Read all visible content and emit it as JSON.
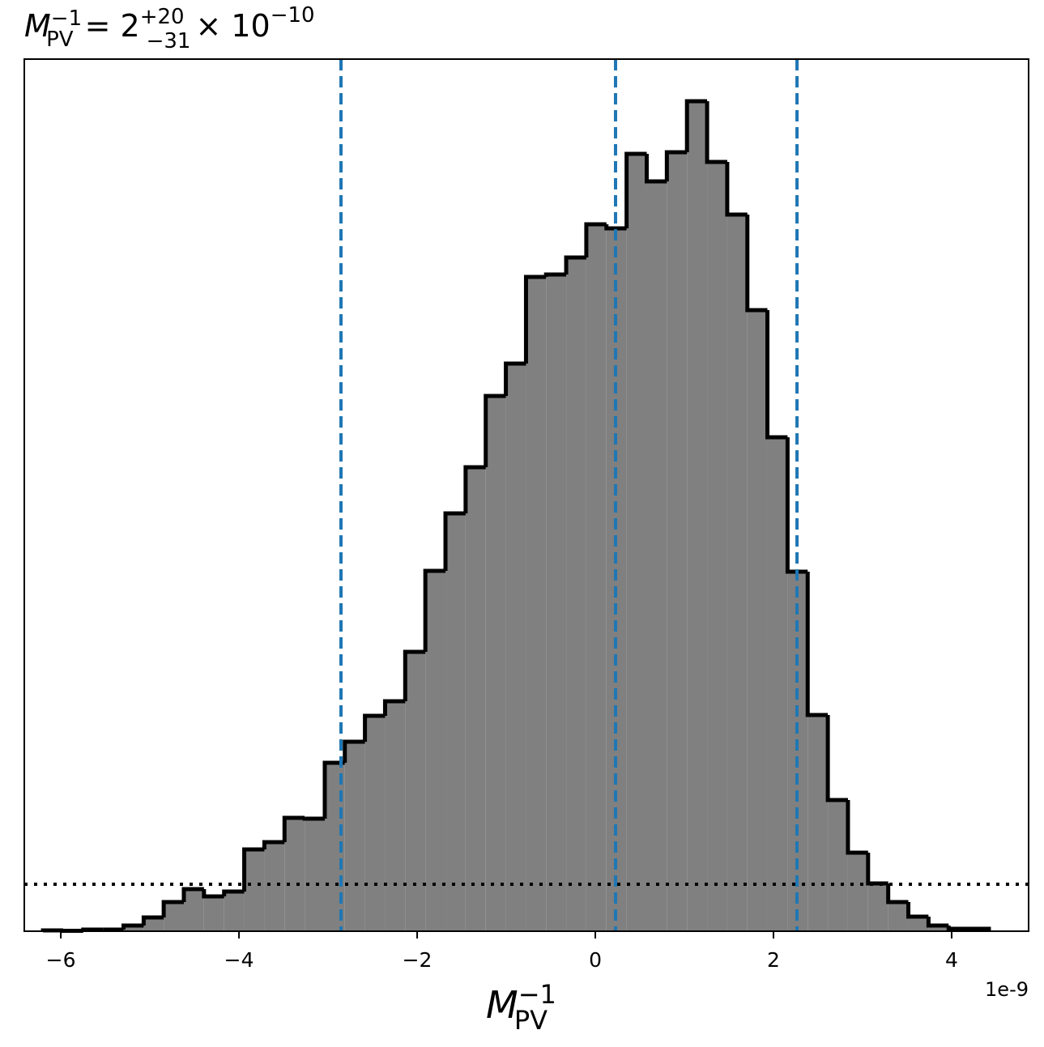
{
  "chart_data": {
    "type": "histogram",
    "title": {
      "symbol": "M",
      "sup": "−1",
      "sub": "PV",
      "equals": "= 2",
      "upper": "+20",
      "lower": "−31",
      "times": "× 10",
      "exponent": "−10"
    },
    "x_label": {
      "symbol": "M",
      "sup": "−1",
      "sub": "PV"
    },
    "x_offset_label": "1e-9",
    "bins": [
      -6.2,
      -5.974,
      -5.748,
      -5.522,
      -5.296,
      -5.07,
      -4.845,
      -4.619,
      -4.393,
      -4.167,
      -3.941,
      -3.715,
      -3.489,
      -3.263,
      -3.037,
      -2.812,
      -2.586,
      -2.36,
      -2.134,
      -1.908,
      -1.682,
      -1.456,
      -1.23,
      -1.004,
      -0.778,
      -0.553,
      -0.327,
      -0.101,
      0.125,
      0.351,
      0.577,
      0.803,
      1.029,
      1.255,
      1.481,
      1.707,
      1.932,
      2.158,
      2.384,
      2.61,
      2.836,
      3.062,
      3.288,
      3.514,
      3.74,
      3.966,
      4.191,
      4.418
    ],
    "values": [
      1,
      0.5,
      2,
      2,
      7,
      17,
      36,
      52,
      43,
      49,
      101,
      110,
      140,
      139,
      208,
      234,
      266,
      284,
      345,
      445,
      516,
      573,
      661,
      701,
      808,
      811,
      832,
      873,
      868,
      960,
      926,
      962,
      1025,
      950,
      885,
      767,
      610,
      444,
      267,
      162,
      97,
      59,
      36,
      18,
      7,
      3,
      3
    ],
    "color": "#808080",
    "edge_color": "#000000",
    "vlines": [
      -2.855,
      0.227,
      2.264
    ],
    "vline_color": "#1f77b4",
    "hline": 58,
    "hline_color": "#000000",
    "xlim": [
      -6.41,
      4.864
    ],
    "ylim": [
      0,
      1077
    ],
    "xticks": [
      {
        "value": -6,
        "label": "−6"
      },
      {
        "value": -4,
        "label": "−4"
      },
      {
        "value": -2,
        "label": "−2"
      },
      0,
      2,
      4
    ]
  }
}
